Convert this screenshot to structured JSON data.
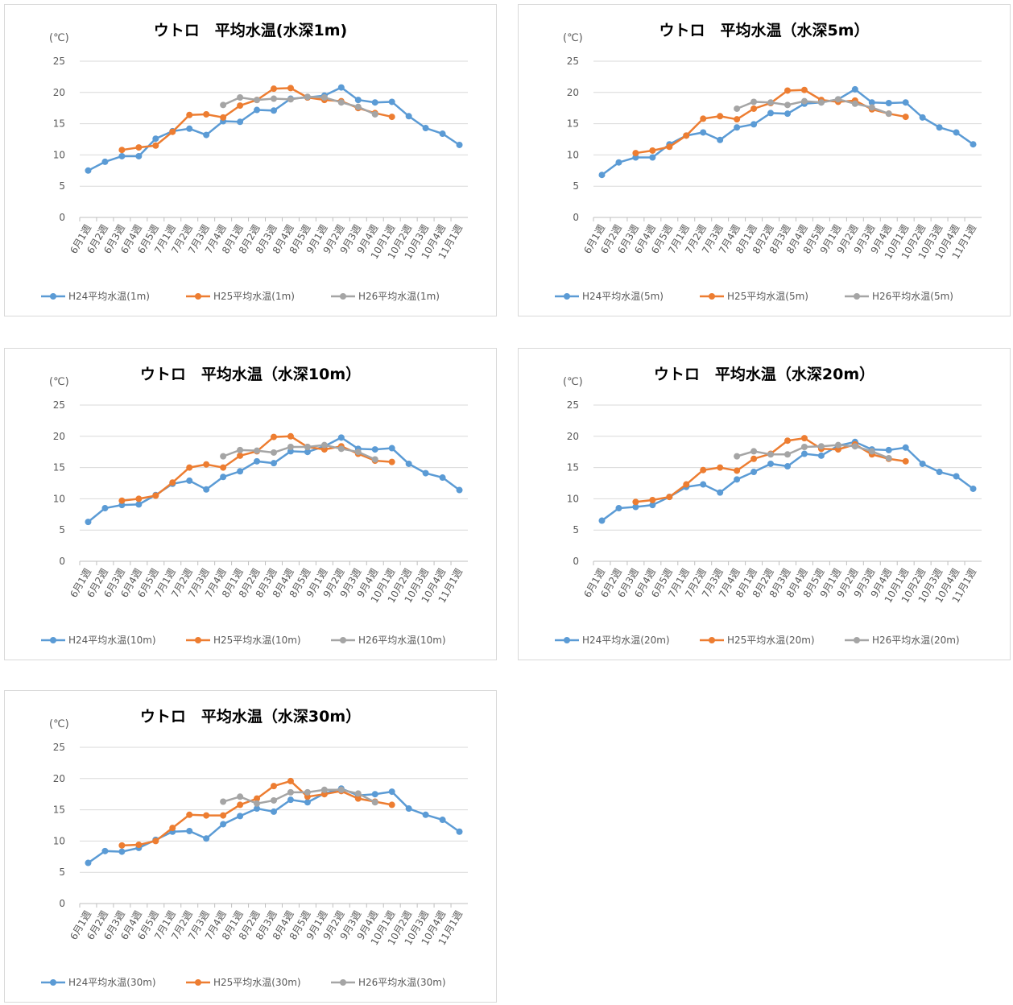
{
  "chart_data": [
    {
      "type": "line",
      "title": "ウトロ　平均水温(水深1m)",
      "unit": "(℃)",
      "categories": [
        "6月1週",
        "6月2週",
        "6月3週",
        "6月4週",
        "6月5週",
        "7月1週",
        "7月2週",
        "7月3週",
        "7月4週",
        "8月1週",
        "8月2週",
        "8月3週",
        "8月4週",
        "8月5週",
        "9月1週",
        "9月2週",
        "9月3週",
        "9月4週",
        "10月1週",
        "10月2週",
        "10月3週",
        "10月4週",
        "11月1週"
      ],
      "series": [
        {
          "name": "H24平均水温(1m)",
          "color": "#5b9bd5",
          "values": [
            7.5,
            8.9,
            9.8,
            9.8,
            12.6,
            13.8,
            14.2,
            13.2,
            15.4,
            15.3,
            17.2,
            17.1,
            19.0,
            19.2,
            19.5,
            20.8,
            18.8,
            18.4,
            18.5,
            16.2,
            14.3,
            13.4,
            11.6
          ]
        },
        {
          "name": "H25平均水温(1m)",
          "color": "#ed7d31",
          "values": [
            null,
            null,
            10.8,
            11.2,
            11.5,
            13.7,
            16.4,
            16.5,
            16.0,
            17.9,
            18.8,
            20.6,
            20.7,
            19.2,
            18.8,
            18.6,
            17.5,
            16.7,
            16.1,
            null,
            null,
            null,
            null
          ]
        },
        {
          "name": "H26平均水温(1m)",
          "color": "#a5a5a5",
          "values": [
            null,
            null,
            null,
            null,
            null,
            null,
            null,
            null,
            18.0,
            19.2,
            18.8,
            19.0,
            18.9,
            19.3,
            19.2,
            18.4,
            17.7,
            16.5,
            null,
            null,
            null,
            null,
            null
          ]
        }
      ],
      "ylim": [
        0,
        25
      ],
      "yticks": [
        0,
        5,
        10,
        15,
        20,
        25
      ],
      "grid": true,
      "legend": "bottom"
    },
    {
      "type": "line",
      "title": "ウトロ　平均水温（水深5m）",
      "unit": "(℃)",
      "categories": [
        "6月1週",
        "6月2週",
        "6月3週",
        "6月4週",
        "6月5週",
        "7月1週",
        "7月2週",
        "7月3週",
        "7月4週",
        "8月1週",
        "8月2週",
        "8月3週",
        "8月4週",
        "8月5週",
        "9月1週",
        "9月2週",
        "9月3週",
        "9月4週",
        "10月1週",
        "10月2週",
        "10月3週",
        "10月4週",
        "11月1週"
      ],
      "series": [
        {
          "name": "H24平均水温(5m)",
          "color": "#5b9bd5",
          "values": [
            6.8,
            8.8,
            9.6,
            9.6,
            11.7,
            13.1,
            13.6,
            12.4,
            14.4,
            14.9,
            16.7,
            16.6,
            18.2,
            18.4,
            18.9,
            20.5,
            18.4,
            18.3,
            18.4,
            16.0,
            14.4,
            13.6,
            11.7
          ]
        },
        {
          "name": "H25平均水温(5m)",
          "color": "#ed7d31",
          "values": [
            null,
            null,
            10.3,
            10.7,
            11.3,
            13.1,
            15.8,
            16.2,
            15.7,
            17.4,
            18.3,
            20.3,
            20.4,
            18.8,
            18.5,
            18.7,
            17.3,
            16.6,
            16.1,
            null,
            null,
            null,
            null
          ]
        },
        {
          "name": "H26平均水温(5m)",
          "color": "#a5a5a5",
          "values": [
            null,
            null,
            null,
            null,
            null,
            null,
            null,
            null,
            17.4,
            18.5,
            18.4,
            18.0,
            18.6,
            18.4,
            18.9,
            18.2,
            17.6,
            16.6,
            null,
            null,
            null,
            null,
            null
          ]
        }
      ],
      "ylim": [
        0,
        25
      ],
      "yticks": [
        0,
        5,
        10,
        15,
        20,
        25
      ],
      "grid": true,
      "legend": "bottom"
    },
    {
      "type": "line",
      "title": "ウトロ　平均水温（水深10m）",
      "unit": "(℃)",
      "categories": [
        "6月1週",
        "6月2週",
        "6月3週",
        "6月4週",
        "6月5週",
        "7月1週",
        "7月2週",
        "7月3週",
        "7月4週",
        "8月1週",
        "8月2週",
        "8月3週",
        "8月4週",
        "8月5週",
        "9月1週",
        "9月2週",
        "9月3週",
        "9月4週",
        "10月1週",
        "10月2週",
        "10月3週",
        "10月4週",
        "11月1週"
      ],
      "series": [
        {
          "name": "H24平均水温(10m)",
          "color": "#5b9bd5",
          "values": [
            6.3,
            8.5,
            9.0,
            9.1,
            10.6,
            12.4,
            12.9,
            11.5,
            13.5,
            14.4,
            16.0,
            15.7,
            17.6,
            17.5,
            18.4,
            19.8,
            18.0,
            17.9,
            18.1,
            15.6,
            14.1,
            13.4,
            11.4
          ]
        },
        {
          "name": "H25平均水温(10m)",
          "color": "#ed7d31",
          "values": [
            null,
            null,
            9.7,
            10.0,
            10.5,
            12.6,
            15.0,
            15.5,
            15.0,
            16.9,
            17.6,
            19.9,
            20.0,
            18.3,
            17.9,
            18.4,
            17.2,
            16.1,
            15.9,
            null,
            null,
            null,
            null
          ]
        },
        {
          "name": "H26平均水温(10m)",
          "color": "#a5a5a5",
          "values": [
            null,
            null,
            null,
            null,
            null,
            null,
            null,
            null,
            16.8,
            17.8,
            17.7,
            17.4,
            18.3,
            18.3,
            18.6,
            18.0,
            17.5,
            16.3,
            null,
            null,
            null,
            null,
            null
          ]
        }
      ],
      "ylim": [
        0,
        25
      ],
      "yticks": [
        0,
        5,
        10,
        15,
        20,
        25
      ],
      "grid": true,
      "legend": "bottom"
    },
    {
      "type": "line",
      "title": "ウトロ　平均水温（水深20m）",
      "unit": "(℃)",
      "categories": [
        "6月1週",
        "6月2週",
        "6月3週",
        "6月4週",
        "6月5週",
        "7月1週",
        "7月2週",
        "7月3週",
        "7月4週",
        "8月1週",
        "8月2週",
        "8月3週",
        "8月4週",
        "8月5週",
        "9月1週",
        "9月2週",
        "9月3週",
        "9月4週",
        "10月1週",
        "10月2週",
        "10月3週",
        "10月4週",
        "11月1週"
      ],
      "series": [
        {
          "name": "H24平均水温(20m)",
          "color": "#5b9bd5",
          "values": [
            6.5,
            8.5,
            8.7,
            9.0,
            10.3,
            11.9,
            12.3,
            11.0,
            13.1,
            14.3,
            15.6,
            15.2,
            17.2,
            16.9,
            18.5,
            19.1,
            17.9,
            17.8,
            18.2,
            15.6,
            14.3,
            13.6,
            11.6
          ]
        },
        {
          "name": "H25平均水温(20m)",
          "color": "#ed7d31",
          "values": [
            null,
            null,
            9.5,
            9.8,
            10.3,
            12.3,
            14.6,
            15.0,
            14.5,
            16.4,
            17.2,
            19.3,
            19.7,
            18.0,
            17.9,
            18.7,
            17.1,
            16.4,
            16.0,
            null,
            null,
            null,
            null
          ]
        },
        {
          "name": "H26平均水温(20m)",
          "color": "#a5a5a5",
          "values": [
            null,
            null,
            null,
            null,
            null,
            null,
            null,
            null,
            16.8,
            17.6,
            17.1,
            17.1,
            18.3,
            18.4,
            18.6,
            18.4,
            17.6,
            16.5,
            null,
            null,
            null,
            null,
            null
          ]
        }
      ],
      "ylim": [
        0,
        25
      ],
      "yticks": [
        0,
        5,
        10,
        15,
        20,
        25
      ],
      "grid": true,
      "legend": "bottom"
    },
    {
      "type": "line",
      "title": "ウトロ　平均水温（水深30m）",
      "unit": "(℃)",
      "categories": [
        "6月1週",
        "6月2週",
        "6月3週",
        "6月4週",
        "6月5週",
        "7月1週",
        "7月2週",
        "7月3週",
        "7月4週",
        "8月1週",
        "8月2週",
        "8月3週",
        "8月4週",
        "8月5週",
        "9月1週",
        "9月2週",
        "9月3週",
        "9月4週",
        "10月1週",
        "10月2週",
        "10月3週",
        "10月4週",
        "11月1週"
      ],
      "series": [
        {
          "name": "H24平均水温(30m)",
          "color": "#5b9bd5",
          "values": [
            6.5,
            8.4,
            8.3,
            8.9,
            10.2,
            11.5,
            11.6,
            10.4,
            12.7,
            14.0,
            15.2,
            14.7,
            16.6,
            16.2,
            17.6,
            18.4,
            17.3,
            17.5,
            17.9,
            15.2,
            14.2,
            13.4,
            11.5
          ]
        },
        {
          "name": "H25平均水温(30m)",
          "color": "#ed7d31",
          "values": [
            null,
            null,
            9.3,
            9.4,
            10.0,
            12.1,
            14.2,
            14.1,
            14.1,
            15.8,
            16.8,
            18.8,
            19.6,
            17.1,
            17.5,
            18.0,
            16.8,
            16.3,
            15.8,
            null,
            null,
            null,
            null
          ]
        },
        {
          "name": "H26平均水温(30m)",
          "color": "#a5a5a5",
          "values": [
            null,
            null,
            null,
            null,
            null,
            null,
            null,
            null,
            16.3,
            17.1,
            16.0,
            16.5,
            17.8,
            17.8,
            18.2,
            18.2,
            17.6,
            16.2,
            null,
            null,
            null,
            null,
            null
          ]
        }
      ],
      "ylim": [
        0,
        25
      ],
      "yticks": [
        0,
        5,
        10,
        15,
        20,
        25
      ],
      "grid": true,
      "legend": "bottom"
    }
  ]
}
